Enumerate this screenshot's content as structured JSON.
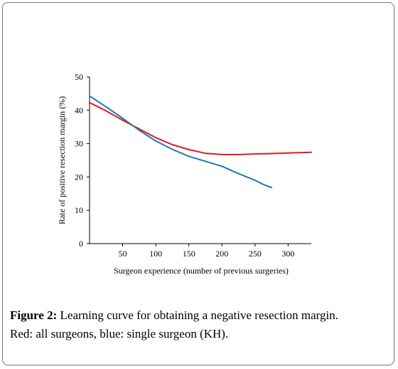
{
  "caption": {
    "label": "Figure 2:",
    "line1": "Learning curve for obtaining a negative resection margin.",
    "line2": "Red: all surgeons, blue: single surgeon (KH)."
  },
  "chart_data": {
    "type": "line",
    "xlabel": "Surgeon experience (number of previous surgeries)",
    "ylabel": "Rate of positive resection margin (%)",
    "xlim": [
      0,
      335
    ],
    "ylim": [
      0,
      50
    ],
    "xticks": [
      50,
      100,
      150,
      200,
      250,
      300
    ],
    "yticks": [
      0,
      10,
      20,
      30,
      40,
      50
    ],
    "grid": false,
    "colors": {
      "red": "#e31a1c",
      "blue": "#1f78b4"
    },
    "series": [
      {
        "color": "red",
        "x": [
          0,
          25,
          50,
          75,
          100,
          125,
          150,
          175,
          200,
          225,
          250,
          275,
          300,
          335
        ],
        "y": [
          42.3,
          39.8,
          37.0,
          34.4,
          31.8,
          29.7,
          28.2,
          27.1,
          26.7,
          26.7,
          26.9,
          27.0,
          27.2,
          27.4
        ]
      },
      {
        "color": "blue",
        "x": [
          0,
          25,
          50,
          75,
          100,
          125,
          150,
          175,
          200,
          225,
          250,
          262,
          275
        ],
        "y": [
          44.3,
          41.0,
          37.6,
          34.0,
          30.8,
          28.3,
          26.2,
          24.7,
          23.2,
          21.0,
          19.0,
          17.8,
          16.8
        ]
      }
    ]
  }
}
